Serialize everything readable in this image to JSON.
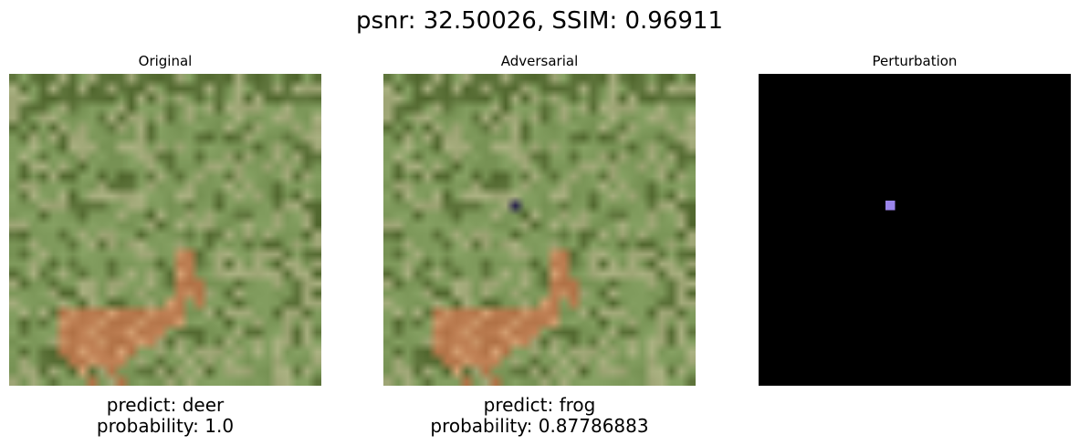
{
  "suptitle": "psnr: 32.50026, SSIM: 0.96911",
  "panels": [
    {
      "title": "Original",
      "caption_predict": "predict: deer",
      "caption_probability": "probability: 1.0"
    },
    {
      "title": "Adversarial",
      "caption_predict": "predict: frog",
      "caption_probability": "probability: 0.87786883"
    },
    {
      "title": "Perturbation",
      "caption_predict": "",
      "caption_probability": ""
    }
  ],
  "perturbed_pixel": {
    "row": 13,
    "col": 13,
    "adversarial_color": "#221a4a",
    "perturbation_color": "#9b85ec"
  },
  "colors": {
    "grass_base": "#7f9a5c",
    "grass_light": "#a3aa7a",
    "grass_dark": "#586e35",
    "deer": "#b97a4e",
    "deer_light": "#cf9a6c",
    "perturbation_background": "#000000"
  }
}
